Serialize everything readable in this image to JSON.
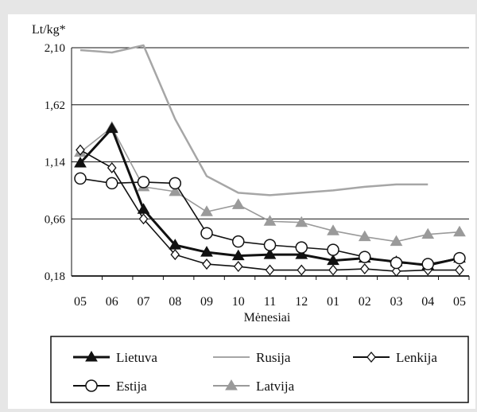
{
  "chart_data": {
    "type": "line",
    "ylabel": "Lt/kg*",
    "xlabel": "Mėnesiai",
    "categories": [
      "05",
      "06",
      "07",
      "08",
      "09",
      "10",
      "11",
      "12",
      "01",
      "02",
      "03",
      "04",
      "05"
    ],
    "ylim": [
      0.18,
      2.1
    ],
    "yticks": [
      "2,10",
      "1,62",
      "1,14",
      "0,66",
      "0,18"
    ],
    "ytick_values": [
      2.1,
      1.62,
      1.14,
      0.66,
      0.18
    ],
    "grid": "horizontal",
    "legend_position": "bottom",
    "series": [
      {
        "name": "Lietuva",
        "color": "#111111",
        "marker": "filled-triangle",
        "values": [
          1.13,
          1.42,
          0.74,
          0.44,
          0.38,
          0.35,
          0.36,
          0.36,
          0.31,
          0.33,
          0.3,
          0.27,
          0.33
        ]
      },
      {
        "name": "Rusija",
        "color": "#a6a6a6",
        "marker": "none",
        "values": [
          2.08,
          2.06,
          2.12,
          1.5,
          1.02,
          0.88,
          0.86,
          0.88,
          0.9,
          0.93,
          0.95,
          0.95,
          null
        ]
      },
      {
        "name": "Lenkija",
        "color": "#111111",
        "marker": "open-diamond",
        "values": [
          1.24,
          1.09,
          0.66,
          0.36,
          0.28,
          0.26,
          0.23,
          0.23,
          0.23,
          0.24,
          0.22,
          0.23,
          0.23
        ]
      },
      {
        "name": "Estija",
        "color": "#111111",
        "marker": "open-circle",
        "values": [
          1.0,
          0.96,
          0.97,
          0.96,
          0.54,
          0.47,
          0.44,
          0.42,
          0.4,
          0.34,
          0.29,
          0.28,
          0.33
        ]
      },
      {
        "name": "Latvija",
        "color": "#9a9a9a",
        "marker": "filled-triangle",
        "values": [
          1.22,
          1.43,
          0.93,
          0.89,
          0.72,
          0.78,
          0.64,
          0.63,
          0.56,
          0.51,
          0.47,
          0.53,
          0.55
        ]
      }
    ]
  }
}
